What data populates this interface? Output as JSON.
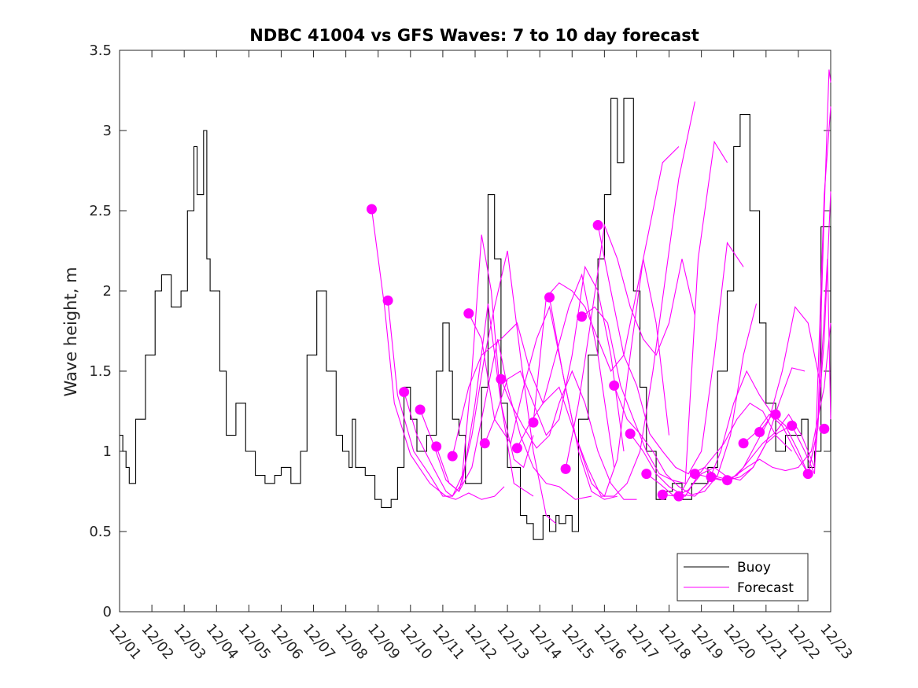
{
  "chart_data": {
    "type": "line",
    "title": "NDBC 41004 vs GFS Waves: 7 to 10 day forecast",
    "xlabel": "",
    "ylabel": "Wave height, m",
    "ylim": [
      0,
      3.5
    ],
    "xlim": [
      0,
      22
    ],
    "x_units": "days since 12/01 00:00",
    "y_ticks": [
      0,
      0.5,
      1,
      1.5,
      2,
      2.5,
      3,
      3.5
    ],
    "y_tick_labels": [
      "0",
      "0.5",
      "1",
      "1.5",
      "2",
      "2.5",
      "3",
      "3.5"
    ],
    "x_ticks": [
      0,
      1,
      2,
      3,
      4,
      5,
      6,
      7,
      8,
      9,
      10,
      11,
      12,
      13,
      14,
      15,
      16,
      17,
      18,
      19,
      20,
      21,
      22
    ],
    "x_tick_labels": [
      "12/01",
      "12/02",
      "12/03",
      "12/04",
      "12/05",
      "12/06",
      "12/07",
      "12/08",
      "12/09",
      "12/10",
      "12/11",
      "12/12",
      "12/13",
      "12/14",
      "12/15",
      "12/16",
      "12/17",
      "12/18",
      "12/19",
      "12/20",
      "12/21",
      "12/22",
      "12/23"
    ],
    "legend": {
      "placement": "bottom-right",
      "entries": [
        "Buoy",
        "Forecast"
      ]
    },
    "colors": {
      "buoy": "#000000",
      "forecast": "#ff00ff",
      "axes": "#262626"
    },
    "series": [
      {
        "name": "Buoy",
        "x": [
          0,
          0.1,
          0.2,
          0.3,
          0.5,
          0.8,
          1.1,
          1.3,
          1.6,
          1.9,
          2.1,
          2.3,
          2.4,
          2.6,
          2.7,
          2.8,
          3.1,
          3.3,
          3.6,
          3.9,
          4.2,
          4.5,
          4.8,
          5.0,
          5.3,
          5.6,
          5.8,
          6.1,
          6.4,
          6.7,
          6.9,
          7.1,
          7.2,
          7.3,
          7.6,
          7.9,
          8.1,
          8.4,
          8.6,
          8.8,
          9.0,
          9.2,
          9.5,
          9.8,
          10.0,
          10.2,
          10.3,
          10.5,
          10.7,
          11.0,
          11.2,
          11.4,
          11.6,
          11.8,
          12.0,
          12.4,
          12.6,
          12.8,
          13.1,
          13.3,
          13.5,
          13.6,
          13.8,
          14.0,
          14.2,
          14.5,
          14.8,
          15.0,
          15.2,
          15.4,
          15.6,
          15.9,
          16.1,
          16.3,
          16.6,
          16.9,
          17.1,
          17.4,
          17.7,
          17.9,
          18.2,
          18.5,
          18.8,
          19.0,
          19.2,
          19.5,
          19.8,
          20.0,
          20.3,
          20.6,
          20.9,
          21.1,
          21.3,
          21.5,
          21.7,
          22.0
        ],
        "values": [
          1.1,
          1.0,
          0.9,
          0.8,
          1.2,
          1.6,
          2.0,
          2.1,
          1.9,
          2.0,
          2.5,
          2.9,
          2.6,
          3.0,
          2.2,
          2.0,
          1.5,
          1.1,
          1.3,
          1.0,
          0.85,
          0.8,
          0.85,
          0.9,
          0.8,
          1.0,
          1.6,
          2.0,
          1.5,
          1.1,
          1.0,
          0.9,
          1.2,
          0.9,
          0.85,
          0.7,
          0.65,
          0.7,
          0.9,
          1.4,
          1.2,
          1.0,
          1.1,
          1.5,
          1.8,
          1.5,
          1.2,
          1.1,
          0.8,
          0.8,
          1.4,
          2.6,
          2.2,
          1.3,
          0.9,
          0.6,
          0.55,
          0.45,
          0.6,
          0.5,
          0.6,
          0.55,
          0.6,
          0.5,
          1.2,
          1.6,
          2.2,
          2.6,
          3.2,
          2.8,
          3.2,
          2.0,
          1.4,
          1.0,
          0.7,
          0.75,
          0.8,
          0.7,
          0.8,
          0.8,
          0.9,
          1.5,
          2.0,
          2.9,
          3.1,
          2.5,
          1.8,
          1.3,
          1.0,
          1.1,
          1.1,
          1.2,
          0.9,
          1.0,
          2.4,
          1.0
        ]
      }
    ],
    "forecast_markers": {
      "x": [
        7.8,
        8.3,
        8.8,
        9.3,
        9.8,
        10.3,
        10.8,
        11.3,
        11.8,
        12.3,
        12.8,
        13.3,
        13.8,
        14.3,
        14.8,
        15.3,
        15.8,
        16.3,
        16.8,
        17.3,
        17.8,
        18.3,
        18.8,
        19.3,
        19.8,
        20.3,
        20.8,
        21.3,
        21.8
      ],
      "values": [
        2.51,
        1.94,
        1.37,
        1.26,
        1.03,
        0.97,
        1.86,
        1.05,
        1.45,
        1.02,
        1.18,
        1.96,
        0.89,
        1.84,
        2.41,
        1.41,
        1.11,
        0.86,
        0.73,
        0.72,
        0.86,
        0.84,
        0.82,
        1.05,
        1.12,
        1.23,
        1.16,
        0.86,
        1.14
      ]
    },
    "forecast_tracks": [
      {
        "x": [
          7.8,
          8.2,
          8.5,
          9.0,
          9.6,
          10.1,
          10.4,
          10.8,
          11.2,
          11.6,
          11.9
        ],
        "values": [
          2.51,
          1.9,
          1.3,
          0.98,
          0.8,
          0.72,
          0.7,
          0.74,
          0.7,
          0.72,
          0.78
        ]
      },
      {
        "x": [
          8.3,
          8.6,
          9.1,
          9.6,
          10.0,
          10.3,
          10.6,
          11.0,
          11.4,
          11.8,
          12.2,
          12.8
        ],
        "values": [
          1.94,
          1.35,
          1.0,
          0.85,
          0.72,
          0.72,
          0.8,
          1.3,
          1.92,
          1.3,
          0.8,
          0.72
        ]
      },
      {
        "x": [
          8.8,
          9.2,
          9.7,
          10.1,
          10.3,
          10.6,
          10.9,
          11.2,
          11.5,
          11.8,
          12.2,
          12.5,
          12.8
        ],
        "values": [
          1.37,
          1.1,
          0.9,
          0.75,
          0.72,
          0.85,
          1.5,
          2.35,
          2.0,
          1.3,
          0.95,
          0.9,
          1.1
        ]
      },
      {
        "x": [
          9.3,
          9.7,
          10.1,
          10.5,
          10.9,
          11.3,
          11.6,
          12.0,
          12.4,
          12.8,
          13.2,
          13.5
        ],
        "values": [
          1.26,
          1.05,
          0.82,
          0.75,
          1.1,
          1.6,
          1.9,
          2.25,
          1.6,
          1.0,
          0.6,
          0.55
        ]
      },
      {
        "x": [
          9.8,
          10.2,
          10.5,
          10.9,
          11.3,
          11.7,
          12.0,
          12.4,
          12.8,
          13.2,
          13.6,
          14.1,
          14.6
        ],
        "values": [
          1.03,
          0.8,
          0.75,
          0.9,
          1.3,
          1.7,
          1.4,
          1.1,
          0.9,
          0.8,
          0.78,
          0.7,
          0.72
        ]
      },
      {
        "x": [
          10.3,
          10.8,
          11.2,
          11.8,
          12.3,
          12.7,
          13.1,
          13.5,
          13.9,
          14.3,
          14.8,
          15.3
        ],
        "values": [
          0.97,
          1.4,
          1.6,
          1.7,
          1.8,
          1.5,
          1.3,
          1.6,
          1.9,
          2.1,
          1.6,
          0.9
        ]
      },
      {
        "x": [
          10.8,
          11.2,
          11.6,
          12.1,
          12.5,
          12.9,
          13.3,
          13.7,
          14.2,
          14.6,
          15.0,
          15.4
        ],
        "values": [
          1.86,
          1.7,
          1.2,
          1.05,
          1.4,
          1.7,
          1.9,
          1.5,
          1.0,
          0.75,
          0.7,
          0.72
        ]
      },
      {
        "x": [
          11.3,
          11.6,
          12.0,
          12.4,
          12.8,
          13.2,
          13.6,
          14.0,
          14.4,
          14.8,
          15.2,
          15.6
        ],
        "values": [
          1.05,
          1.2,
          1.45,
          1.5,
          1.3,
          1.1,
          1.2,
          1.6,
          2.15,
          2.0,
          1.6,
          1.0
        ]
      },
      {
        "x": [
          11.8,
          12.1,
          12.5,
          12.9,
          13.3,
          13.6,
          14.0,
          14.4,
          14.8,
          15.2,
          15.6,
          16.0
        ],
        "values": [
          1.45,
          1.3,
          1.15,
          1.02,
          1.1,
          1.3,
          1.5,
          1.3,
          1.0,
          0.8,
          0.7,
          0.7
        ]
      },
      {
        "x": [
          12.3,
          12.7,
          13.1,
          13.6,
          14.1,
          14.6,
          15.0,
          15.4,
          15.8,
          16.2,
          16.6,
          17.0
        ],
        "values": [
          1.02,
          1.18,
          1.3,
          1.4,
          1.1,
          0.8,
          0.72,
          0.95,
          1.6,
          2.2,
          1.8,
          1.1
        ]
      },
      {
        "x": [
          12.8,
          13.2,
          13.6,
          14.0,
          14.4,
          14.8,
          15.2,
          15.6,
          16.0,
          16.4,
          16.8,
          17.3
        ],
        "values": [
          1.18,
          1.96,
          2.05,
          2.0,
          1.9,
          1.7,
          1.5,
          1.6,
          2.0,
          2.4,
          2.8,
          2.9
        ]
      },
      {
        "x": [
          13.3,
          13.7,
          14.1,
          14.5,
          14.9,
          15.3,
          15.7,
          16.1,
          16.5,
          16.9,
          17.3,
          17.8
        ],
        "values": [
          1.96,
          1.5,
          1.1,
          0.89,
          0.72,
          0.72,
          0.8,
          1.0,
          1.5,
          2.1,
          2.7,
          3.18
        ]
      },
      {
        "x": [
          13.8,
          14.2,
          14.6,
          15.0,
          15.4,
          15.8,
          16.2,
          16.6,
          17.0,
          17.4,
          17.8
        ],
        "values": [
          0.89,
          1.3,
          1.84,
          2.41,
          2.2,
          1.9,
          1.7,
          1.6,
          1.8,
          2.2,
          1.85
        ]
      },
      {
        "x": [
          14.3,
          14.7,
          15.1,
          15.5,
          15.9,
          16.3,
          16.7,
          17.1,
          17.5,
          17.9,
          18.4,
          18.8
        ],
        "values": [
          1.84,
          1.9,
          1.8,
          1.41,
          1.2,
          1.0,
          0.86,
          0.82,
          0.8,
          2.2,
          2.93,
          2.8
        ]
      },
      {
        "x": [
          14.8,
          15.2,
          15.6,
          16.0,
          16.4,
          16.8,
          17.2,
          17.6,
          18.0,
          18.4,
          18.8,
          19.3
        ],
        "values": [
          2.41,
          2.0,
          1.6,
          1.41,
          1.11,
          1.0,
          0.9,
          0.86,
          1.0,
          1.6,
          2.3,
          2.15
        ]
      },
      {
        "x": [
          15.3,
          15.7,
          16.1,
          16.5,
          16.9,
          17.3,
          17.7,
          18.1,
          18.5,
          18.9,
          19.3,
          19.7
        ],
        "values": [
          1.41,
          1.2,
          1.11,
          1.0,
          0.86,
          0.78,
          0.73,
          0.75,
          0.85,
          1.1,
          1.6,
          1.92
        ]
      },
      {
        "x": [
          15.8,
          16.2,
          16.6,
          17.0,
          17.4,
          17.8,
          18.2,
          18.6,
          19.0,
          19.4,
          19.8,
          20.3
        ],
        "values": [
          1.11,
          1.0,
          0.86,
          0.78,
          0.73,
          0.72,
          0.8,
          1.0,
          1.3,
          1.5,
          1.35,
          1.2
        ]
      },
      {
        "x": [
          16.3,
          16.7,
          17.1,
          17.5,
          17.9,
          18.3,
          18.7,
          19.1,
          19.5,
          19.9,
          20.3,
          20.8
        ],
        "values": [
          0.86,
          0.8,
          0.73,
          0.72,
          0.85,
          0.95,
          1.05,
          1.2,
          1.3,
          1.25,
          1.1,
          1.0
        ]
      },
      {
        "x": [
          16.8,
          17.2,
          17.6,
          18.0,
          18.4,
          18.8,
          19.2,
          19.6,
          20.0,
          20.4,
          20.8,
          21.2
        ],
        "values": [
          0.73,
          0.72,
          0.76,
          0.86,
          0.9,
          0.84,
          0.82,
          0.9,
          1.05,
          1.3,
          1.52,
          1.5
        ]
      },
      {
        "x": [
          17.3,
          17.7,
          18.1,
          18.5,
          18.9,
          19.3,
          19.7,
          20.1,
          20.5,
          20.9,
          21.3,
          21.7
        ],
        "values": [
          0.72,
          0.86,
          0.9,
          0.84,
          0.82,
          0.9,
          1.05,
          1.2,
          1.5,
          1.9,
          1.8,
          1.4
        ]
      },
      {
        "x": [
          17.8,
          18.2,
          18.6,
          19.0,
          19.4,
          19.8,
          20.2,
          20.6,
          21.0,
          21.4,
          21.8,
          22.0
        ],
        "values": [
          0.86,
          0.84,
          0.82,
          0.84,
          0.9,
          0.95,
          0.9,
          0.88,
          0.9,
          1.0,
          1.4,
          1.8
        ]
      },
      {
        "x": [
          18.3,
          18.7,
          19.1,
          19.5,
          19.9,
          20.3,
          20.7,
          21.1,
          21.5,
          21.8,
          22.0
        ],
        "values": [
          0.84,
          0.82,
          0.85,
          0.95,
          1.05,
          1.12,
          1.23,
          1.1,
          0.9,
          1.7,
          2.62
        ]
      },
      {
        "x": [
          18.8,
          19.2,
          19.6,
          20.0,
          20.4,
          20.8,
          21.2,
          21.5,
          21.8,
          22.0
        ],
        "values": [
          0.82,
          0.84,
          0.9,
          1.05,
          1.12,
          1.16,
          1.0,
          0.86,
          2.6,
          3.15
        ]
      },
      {
        "x": [
          19.3,
          19.7,
          20.1,
          20.5,
          20.9,
          21.3,
          21.6,
          21.8,
          21.95,
          22.0
        ],
        "values": [
          1.05,
          1.12,
          1.23,
          1.16,
          1.0,
          0.86,
          1.14,
          2.5,
          3.38,
          3.3
        ]
      },
      {
        "x": [
          19.8,
          20.2,
          20.6,
          21.0,
          21.3,
          21.6,
          21.9,
          22.0
        ],
        "values": [
          1.12,
          1.23,
          1.16,
          1.0,
          0.86,
          1.14,
          2.2,
          1.2
        ]
      }
    ]
  }
}
